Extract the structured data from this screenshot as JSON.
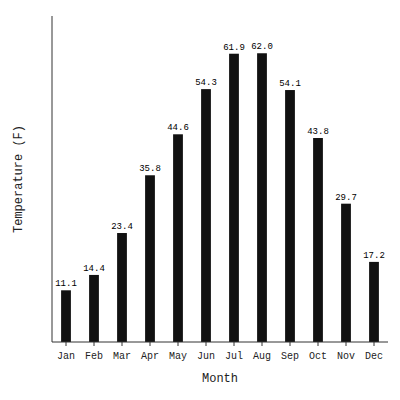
{
  "chart_data": {
    "type": "bar",
    "categories": [
      "Jan",
      "Feb",
      "Mar",
      "Apr",
      "May",
      "Jun",
      "Jul",
      "Aug",
      "Sep",
      "Oct",
      "Nov",
      "Dec"
    ],
    "values": [
      11.1,
      14.4,
      23.4,
      35.8,
      44.6,
      54.3,
      61.9,
      62.0,
      54.1,
      43.8,
      29.7,
      17.2
    ],
    "value_labels": [
      "11.1",
      "14.4",
      "23.4",
      "35.8",
      "44.6",
      "54.3",
      "61.9",
      "62.0",
      "54.1",
      "43.8",
      "29.7",
      "17.2"
    ],
    "color": "#111111",
    "xlabel": "Month",
    "ylabel": "Temperature (F)",
    "ylim": [
      0,
      70
    ],
    "data_labels": true,
    "tick_labels": "x",
    "grid": false
  }
}
